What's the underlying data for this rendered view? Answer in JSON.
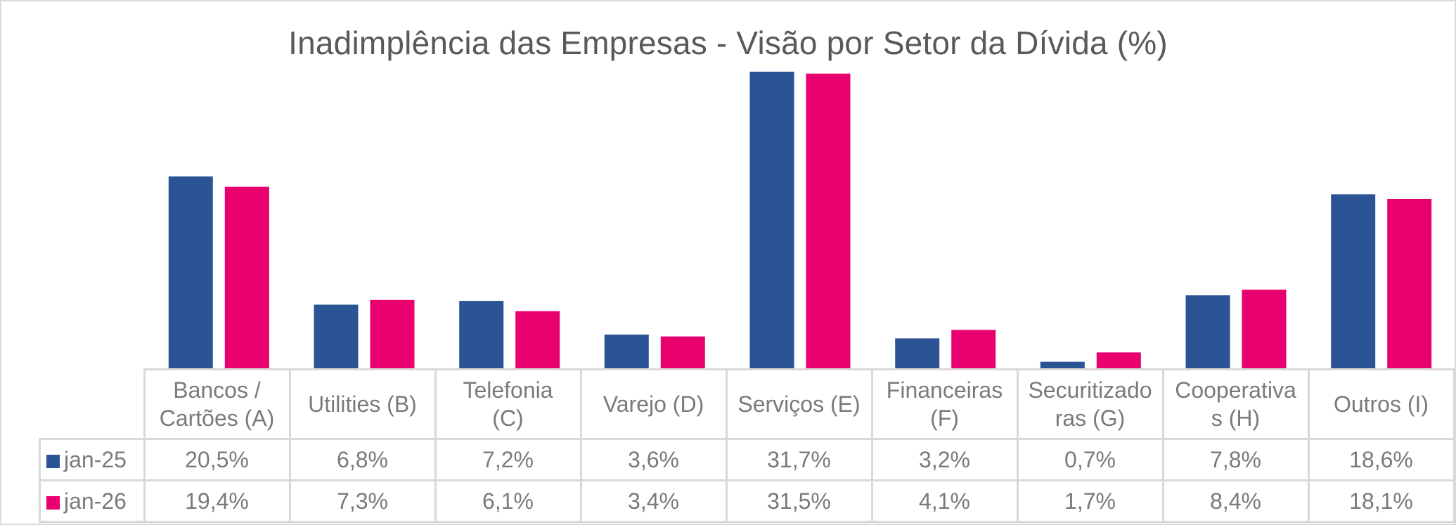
{
  "chart_data": {
    "type": "bar",
    "title": "Inadimplência das Empresas - Visão por Setor da Dívida (%)",
    "xlabel": "",
    "ylabel": "",
    "ylim": [
      0,
      32
    ],
    "grid": false,
    "legend": "data-table-left",
    "categories": [
      "Bancos / Cartões (A)",
      "Utilities (B)",
      "Telefonia (C)",
      "Varejo (D)",
      "Serviços (E)",
      "Financeiras (F)",
      "Securitizadoras (G)",
      "Cooperativas (H)",
      "Outros (I)"
    ],
    "category_lines": [
      [
        "Bancos /",
        "Cartões (A)"
      ],
      [
        "Utilities (B)"
      ],
      [
        "Telefonia",
        "(C)"
      ],
      [
        "Varejo (D)"
      ],
      [
        "Serviços (E)"
      ],
      [
        "Financeiras",
        "(F)"
      ],
      [
        "Securitizado",
        "ras (G)"
      ],
      [
        "Cooperativa",
        "s (H)"
      ],
      [
        "Outros (I)"
      ]
    ],
    "series": [
      {
        "name": "jan-25",
        "color": "#2A5494",
        "values": [
          20.5,
          6.8,
          7.2,
          3.6,
          31.7,
          3.2,
          0.7,
          7.8,
          18.6
        ],
        "labels": [
          "20,5%",
          "6,8%",
          "7,2%",
          "3,6%",
          "31,7%",
          "3,2%",
          "0,7%",
          "7,8%",
          "18,6%"
        ]
      },
      {
        "name": "jan-26",
        "color": "#E8006F",
        "values": [
          19.4,
          7.3,
          6.1,
          3.4,
          31.5,
          4.1,
          1.7,
          8.4,
          18.1
        ],
        "labels": [
          "19,4%",
          "7,3%",
          "6,1%",
          "3,4%",
          "31,5%",
          "4,1%",
          "1,7%",
          "8,4%",
          "18,1%"
        ]
      }
    ]
  }
}
